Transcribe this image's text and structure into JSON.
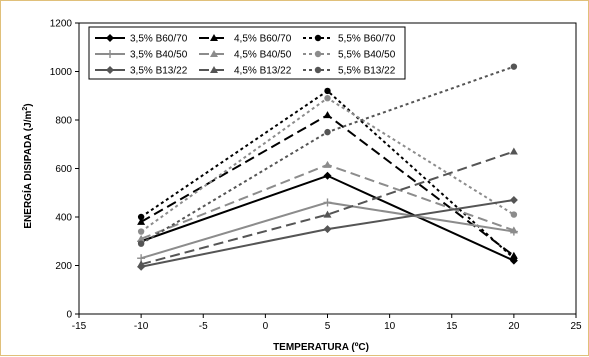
{
  "chart_data": {
    "type": "line",
    "xlabel": "TEMPERATURA (ºC)",
    "ylabel": "ENERGÍA DISIPADA (J/m²)",
    "xlim": [
      -15,
      25
    ],
    "ylim": [
      0,
      1200
    ],
    "x_ticks": [
      "-15",
      "-10",
      "-5",
      "0",
      "5",
      "10",
      "15",
      "20",
      "25"
    ],
    "y_ticks": [
      "0",
      "200",
      "400",
      "600",
      "800",
      "1000",
      "1200"
    ],
    "grid": false,
    "legend_position": "top-left",
    "legend_columns": 3,
    "x": [
      -10,
      5,
      20
    ],
    "series": [
      {
        "name": "3,5% B60/70",
        "values": [
          300,
          570,
          220
        ],
        "color": "#000000",
        "dash": "solid",
        "marker": "diamond"
      },
      {
        "name": "4,5% B60/70",
        "values": [
          380,
          820,
          240
        ],
        "color": "#000000",
        "dash": "longdash",
        "marker": "triangle"
      },
      {
        "name": "5,5% B60/70",
        "values": [
          400,
          920,
          230
        ],
        "color": "#000000",
        "dash": "dotted",
        "marker": "circle"
      },
      {
        "name": "3,5% B40/50",
        "values": [
          230,
          460,
          340
        ],
        "color": "#8c8c8c",
        "dash": "solid",
        "marker": "plus"
      },
      {
        "name": "4,5% B40/50",
        "values": [
          310,
          615,
          345
        ],
        "color": "#8c8c8c",
        "dash": "longdash",
        "marker": "triangle"
      },
      {
        "name": "5,5% B40/50",
        "values": [
          340,
          890,
          410
        ],
        "color": "#8c8c8c",
        "dash": "dotted",
        "marker": "circle"
      },
      {
        "name": "3,5% B13/22",
        "values": [
          195,
          350,
          470
        ],
        "color": "#555555",
        "dash": "solid",
        "marker": "diamond"
      },
      {
        "name": "4,5% B13/22",
        "values": [
          205,
          410,
          670
        ],
        "color": "#555555",
        "dash": "longdash",
        "marker": "triangle"
      },
      {
        "name": "5,5% B13/22",
        "values": [
          290,
          750,
          1020
        ],
        "color": "#555555",
        "dash": "dotted",
        "marker": "circle"
      }
    ]
  }
}
